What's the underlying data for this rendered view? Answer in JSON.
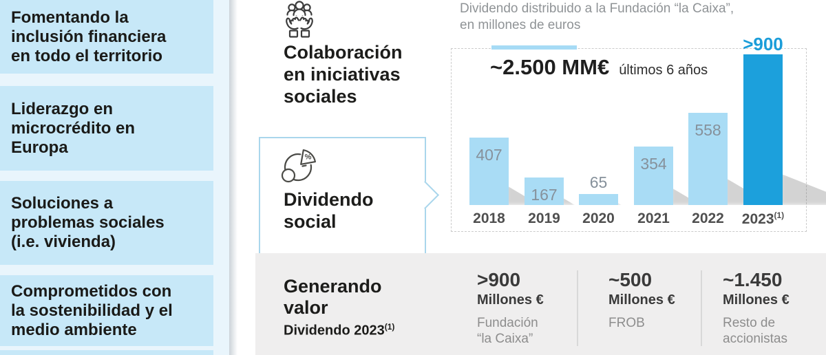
{
  "sidebar": {
    "items": [
      {
        "lines": [
          "Fomentando la",
          "inclusión financiera",
          "en todo el territorio"
        ]
      },
      {
        "lines": [
          "Liderazgo en",
          "microcrédito en",
          "Europa"
        ]
      },
      {
        "lines": [
          "Soluciones a",
          "problemas sociales",
          "(i.e. vivienda)"
        ]
      },
      {
        "lines": [
          "Comprometidos con",
          "la sostenibilidad y el",
          "medio ambiente"
        ]
      }
    ]
  },
  "pillars": {
    "collaboration": {
      "icon": "hands-community-icon",
      "title_lines": [
        "Colaboración",
        "en iniciativas",
        "sociales"
      ]
    },
    "dividend": {
      "icon": "pie-percent-icon",
      "title_lines": [
        "Dividendo",
        "social"
      ]
    }
  },
  "chart": {
    "title_lines": [
      "Dividendo distribuido a la Fundación “la Caixa”,",
      "en millones de euros"
    ],
    "highlight_value": "~2.500 MM€",
    "highlight_note": "últimos 6 años"
  },
  "chart_data": {
    "type": "bar",
    "title": "Dividendo distribuido a la Fundación “la Caixa”, en millones de euros",
    "categories": [
      "2018",
      "2019",
      "2020",
      "2021",
      "2022",
      "2023"
    ],
    "values": [
      407,
      167,
      65,
      354,
      558,
      910
    ],
    "display_labels": [
      "407",
      "167",
      "65",
      "354",
      "558",
      ">900"
    ],
    "label_above": [
      false,
      false,
      true,
      false,
      false,
      true
    ],
    "highlight_index": 5,
    "category_superscripts": [
      "",
      "",
      "",
      "",
      "",
      "(1)"
    ],
    "annotation": "~2.500 MM€ últimos 6 años",
    "xlabel": "",
    "ylabel": "millones de euros",
    "ylim": [
      0,
      950
    ],
    "grid": false,
    "legend": "none",
    "colors": {
      "bar": "#a9dcf5",
      "bar_highlight": "#1ca0dc",
      "label": "#86919b",
      "label_highlight": "#1b9dd9"
    }
  },
  "footer": {
    "title_lines": [
      "Generando",
      "valor"
    ],
    "subtitle": "Dividendo 2023",
    "subtitle_superscript": "(1)",
    "columns": [
      {
        "value": ">900",
        "unit": "Millones €",
        "label_lines": [
          "Fundación",
          "“la Caixa”"
        ]
      },
      {
        "value": "~500",
        "unit": "Millones €",
        "label_lines": [
          "FROB",
          ""
        ]
      },
      {
        "value": "~1.450",
        "unit": "Millones €",
        "label_lines": [
          "Resto de",
          "accionistas"
        ]
      }
    ]
  },
  "colors": {
    "accent_blue": "#1ca0dc",
    "light_blue_bar": "#a9dcf5",
    "sidebar_box": "#c7e8f8",
    "sidebar_background": "#e9f5fc",
    "callout_border": "#a9d6ec",
    "footer_band": "#efeeee",
    "title_gray": "#8f9396",
    "text_dark": "#1d1d1b"
  }
}
